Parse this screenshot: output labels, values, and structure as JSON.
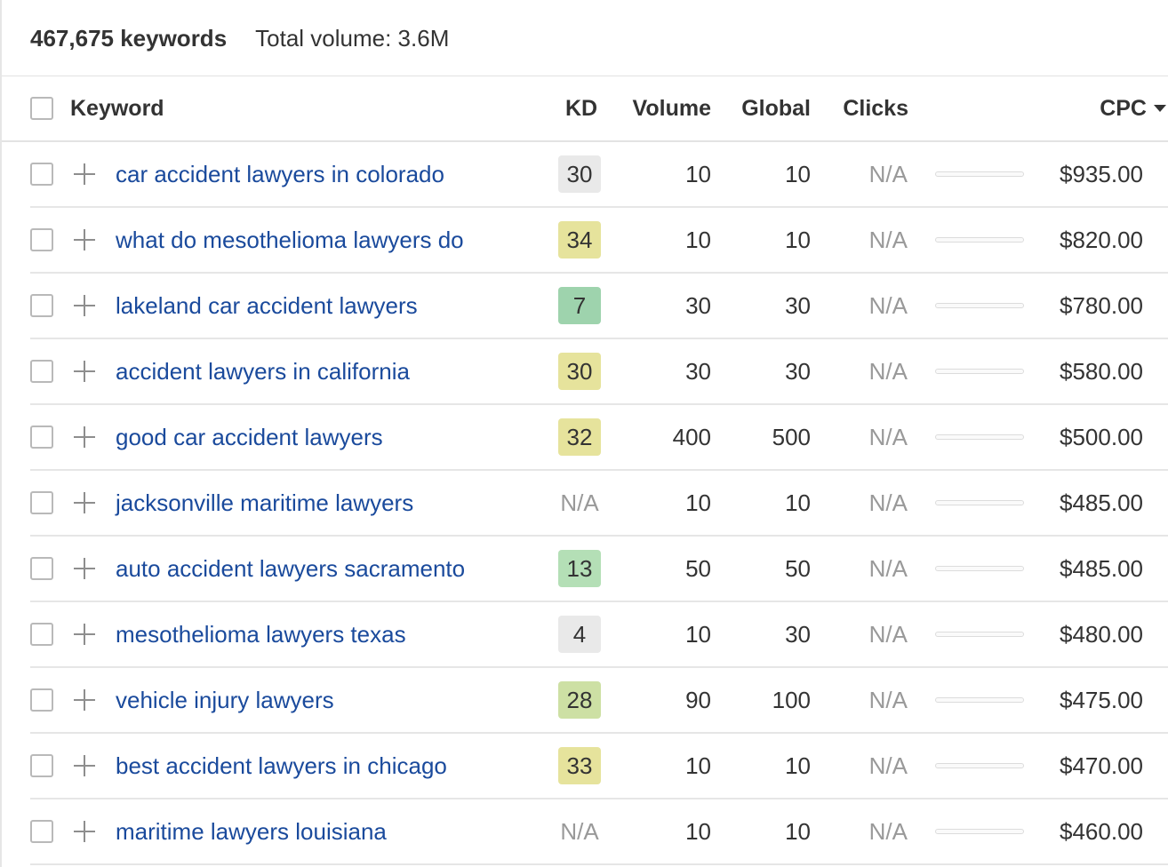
{
  "summary": {
    "keyword_count": "467,675 keywords",
    "total_volume": "Total volume: 3.6M"
  },
  "columns": {
    "keyword": "Keyword",
    "kd": "KD",
    "volume": "Volume",
    "global": "Global",
    "clicks": "Clicks",
    "cpc": "CPC"
  },
  "colors": {
    "link": "#1a4a9c",
    "kd_gray": "#e9e9e9",
    "kd_yellow": "#e6e39c",
    "kd_dark_green": "#9ed3ad",
    "kd_light_green": "#b4dfb6",
    "kd_olive": "#cde0a4"
  },
  "rows": [
    {
      "keyword": "car accident lawyers in colorado",
      "kd": "30",
      "kd_color": "#e9e9e9",
      "volume": "10",
      "global": "10",
      "clicks": "N/A",
      "cpc": "$935.00"
    },
    {
      "keyword": "what do mesothelioma lawyers do",
      "kd": "34",
      "kd_color": "#e6e39c",
      "volume": "10",
      "global": "10",
      "clicks": "N/A",
      "cpc": "$820.00"
    },
    {
      "keyword": "lakeland car accident lawyers",
      "kd": "7",
      "kd_color": "#9ed3ad",
      "volume": "30",
      "global": "30",
      "clicks": "N/A",
      "cpc": "$780.00"
    },
    {
      "keyword": "accident lawyers in california",
      "kd": "30",
      "kd_color": "#e6e39c",
      "volume": "30",
      "global": "30",
      "clicks": "N/A",
      "cpc": "$580.00"
    },
    {
      "keyword": "good car accident lawyers",
      "kd": "32",
      "kd_color": "#e6e39c",
      "volume": "400",
      "global": "500",
      "clicks": "N/A",
      "cpc": "$500.00"
    },
    {
      "keyword": "jacksonville maritime lawyers",
      "kd": "N/A",
      "kd_color": "",
      "volume": "10",
      "global": "10",
      "clicks": "N/A",
      "cpc": "$485.00"
    },
    {
      "keyword": "auto accident lawyers sacramento",
      "kd": "13",
      "kd_color": "#b4dfb6",
      "volume": "50",
      "global": "50",
      "clicks": "N/A",
      "cpc": "$485.00"
    },
    {
      "keyword": "mesothelioma lawyers texas",
      "kd": "4",
      "kd_color": "#e9e9e9",
      "volume": "10",
      "global": "30",
      "clicks": "N/A",
      "cpc": "$480.00"
    },
    {
      "keyword": "vehicle injury lawyers",
      "kd": "28",
      "kd_color": "#cde0a4",
      "volume": "90",
      "global": "100",
      "clicks": "N/A",
      "cpc": "$475.00"
    },
    {
      "keyword": "best accident lawyers in chicago",
      "kd": "33",
      "kd_color": "#e6e39c",
      "volume": "10",
      "global": "10",
      "clicks": "N/A",
      "cpc": "$470.00"
    },
    {
      "keyword": "maritime lawyers louisiana",
      "kd": "N/A",
      "kd_color": "",
      "volume": "10",
      "global": "10",
      "clicks": "N/A",
      "cpc": "$460.00"
    }
  ]
}
